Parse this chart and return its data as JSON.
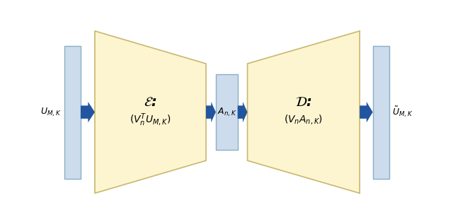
{
  "bg_color": "#ffffff",
  "trapezoid_fill": "#fdf5d0",
  "trapezoid_edge": "#c8b86e",
  "rect_fill": "#ccdcec",
  "rect_edge": "#8aaec8",
  "arrow_color": "#2255a0",
  "text_color": "#000000",
  "enc_label_line1": "$\\mathcal{E}$:",
  "enc_label_line2": "$(V_n^T U_{M,K})$",
  "dec_label_line1": "$\\mathcal{D}$:",
  "dec_label_line2": "$(V_n A_{n,K})$",
  "bottleneck_label": "$A_{n,K}$",
  "input_label": "$U_{M,K}$",
  "output_label": "$\\tilde{U}_{M,K}$"
}
